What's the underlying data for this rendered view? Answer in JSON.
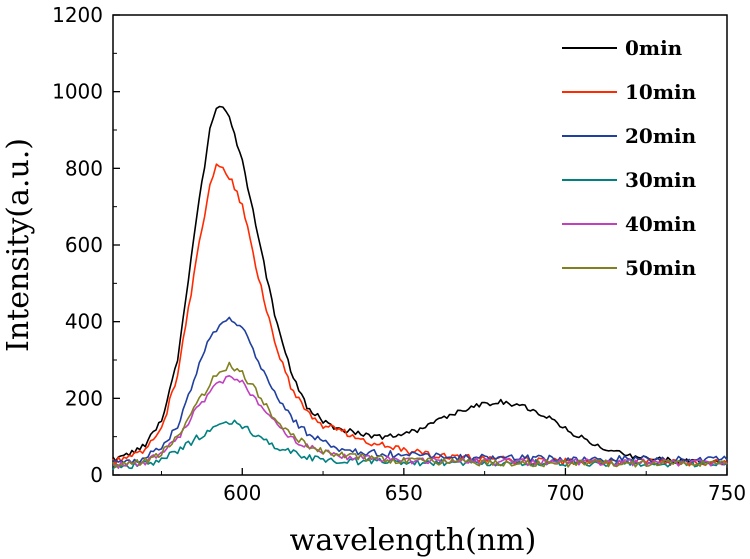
{
  "chart_data": {
    "type": "line",
    "title": "",
    "xlabel": "wavelength(nm)",
    "ylabel": "Intensity(a.u.)",
    "xlim": [
      560,
      750
    ],
    "ylim": [
      0,
      1200
    ],
    "xticks": [
      600,
      650,
      700,
      750
    ],
    "yticks": [
      0,
      200,
      400,
      600,
      800,
      1000,
      1200
    ],
    "grid": false,
    "legend_position": "top-right",
    "x": [
      560,
      565,
      570,
      575,
      580,
      585,
      590,
      592,
      594,
      596,
      600,
      605,
      610,
      615,
      620,
      625,
      630,
      635,
      640,
      645,
      650,
      655,
      660,
      665,
      670,
      675,
      680,
      685,
      690,
      695,
      700,
      710,
      720,
      730,
      740,
      750
    ],
    "series": [
      {
        "name": "0min",
        "color": "#000000",
        "values": [
          40,
          55,
          80,
          140,
          300,
          620,
          900,
          960,
          955,
          930,
          820,
          620,
          420,
          270,
          180,
          140,
          120,
          110,
          100,
          100,
          105,
          120,
          140,
          160,
          175,
          185,
          190,
          185,
          170,
          150,
          120,
          75,
          50,
          40,
          35,
          30
        ]
      },
      {
        "name": "10min",
        "color": "#ff2a00",
        "values": [
          35,
          45,
          65,
          120,
          260,
          520,
          760,
          810,
          800,
          780,
          700,
          520,
          350,
          230,
          160,
          130,
          115,
          100,
          85,
          75,
          65,
          58,
          52,
          48,
          45,
          42,
          40,
          38,
          37,
          36,
          35,
          35,
          34,
          33,
          33,
          32
        ]
      },
      {
        "name": "20min",
        "color": "#2040a0",
        "values": [
          30,
          35,
          45,
          70,
          130,
          250,
          360,
          380,
          395,
          410,
          390,
          300,
          210,
          150,
          110,
          85,
          70,
          62,
          58,
          55,
          52,
          50,
          48,
          47,
          46,
          45,
          44,
          44,
          43,
          43,
          42,
          42,
          41,
          41,
          40,
          40
        ]
      },
      {
        "name": "30min",
        "color": "#008080",
        "values": [
          20,
          22,
          28,
          40,
          60,
          90,
          120,
          128,
          135,
          140,
          130,
          100,
          75,
          58,
          48,
          42,
          38,
          36,
          35,
          34,
          34,
          33,
          33,
          33,
          32,
          32,
          32,
          32,
          31,
          31,
          31,
          31,
          30,
          30,
          30,
          30
        ]
      },
      {
        "name": "40min",
        "color": "#c040c0",
        "values": [
          25,
          28,
          35,
          55,
          95,
          160,
          220,
          235,
          245,
          250,
          240,
          190,
          140,
          100,
          75,
          60,
          50,
          45,
          42,
          40,
          38,
          37,
          36,
          36,
          35,
          35,
          35,
          34,
          34,
          34,
          33,
          33,
          33,
          32,
          32,
          32
        ]
      },
      {
        "name": "50min",
        "color": "#808020",
        "values": [
          25,
          28,
          36,
          58,
          100,
          170,
          240,
          260,
          275,
          285,
          265,
          210,
          150,
          105,
          78,
          62,
          52,
          46,
          42,
          40,
          38,
          36,
          35,
          34,
          33,
          33,
          32,
          32,
          31,
          31,
          30,
          30,
          30,
          29,
          29,
          28
        ]
      }
    ]
  }
}
